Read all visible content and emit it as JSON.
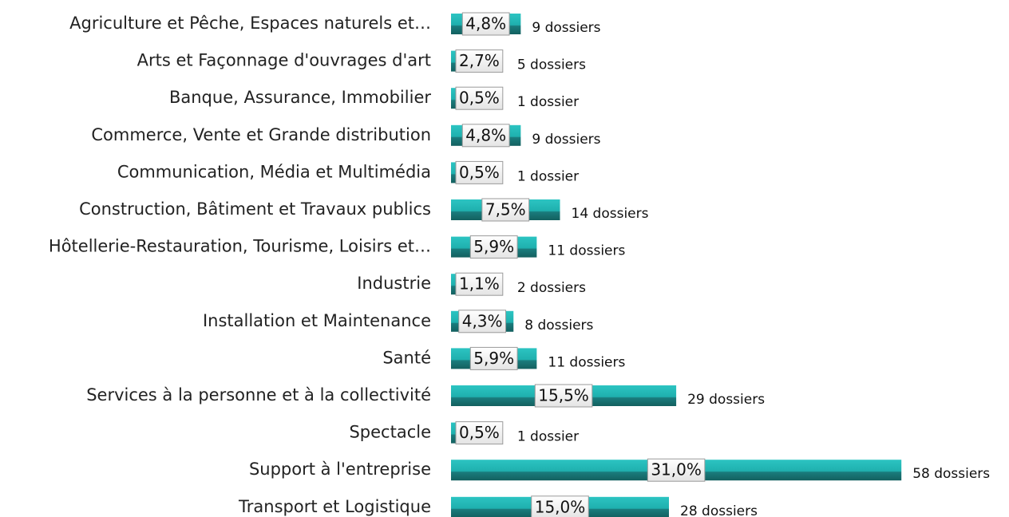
{
  "chart_data": {
    "type": "bar",
    "orientation": "horizontal",
    "categories": [
      "Agriculture et Pêche, Espaces naturels et…",
      "Arts et Façonnage d'ouvrages d'art",
      "Banque, Assurance, Immobilier",
      "Commerce, Vente et Grande distribution",
      "Communication, Média et Multimédia",
      "Construction, Bâtiment et Travaux publics",
      "Hôtellerie-Restauration, Tourisme, Loisirs et…",
      "Industrie",
      "Installation et Maintenance",
      "Santé",
      "Services à la personne et à la collectivité",
      "Spectacle",
      "Support à l'entreprise",
      "Transport et Logistique"
    ],
    "values": [
      4.8,
      2.7,
      0.5,
      4.8,
      0.5,
      7.5,
      5.9,
      1.1,
      4.3,
      5.9,
      15.5,
      0.5,
      31.0,
      15.0
    ],
    "value_labels": [
      "4,8%",
      "2,7%",
      "0,5%",
      "4,8%",
      "0,5%",
      "7,5%",
      "5,9%",
      "1,1%",
      "4,3%",
      "5,9%",
      "15,5%",
      "0,5%",
      "31,0%",
      "15,0%"
    ],
    "count_labels": [
      "9 dossiers",
      "5 dossiers",
      "1 dossier",
      "9 dossiers",
      "1 dossier",
      "14 dossiers",
      "11 dossiers",
      "2 dossiers",
      "8 dossiers",
      "11 dossiers",
      "29 dossiers",
      "1 dossier",
      "58 dossiers",
      "28 dossiers"
    ],
    "color": "#1fb8b6"
  }
}
